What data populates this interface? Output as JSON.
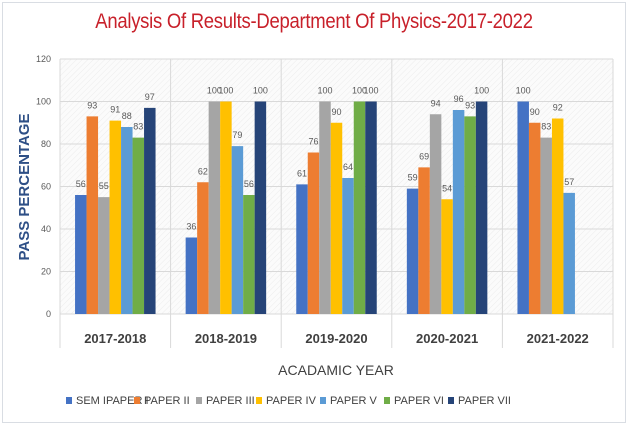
{
  "chart_data": {
    "type": "bar",
    "title": "Analysis Of Results-Department Of Physics-2017-2022",
    "xlabel": "ACADAMIC YEAR",
    "ylabel": "PASS PERCENTAGE",
    "ylim": [
      0,
      120
    ],
    "yticks": [
      0,
      20,
      40,
      60,
      80,
      100,
      120
    ],
    "grid": true,
    "legend_position": "bottom",
    "categories": [
      "2017-2018",
      "2018-2019",
      "2019-2020",
      "2020-2021",
      "2021-2022"
    ],
    "series": [
      {
        "name": "SEM IPAPER I",
        "color": "#4472c4",
        "values": [
          56,
          36,
          61,
          59,
          100
        ]
      },
      {
        "name": "PAPER II",
        "color": "#ed7d31",
        "values": [
          93,
          62,
          76,
          69,
          90
        ]
      },
      {
        "name": "PAPER III",
        "color": "#a5a5a5",
        "values": [
          55,
          100,
          100,
          94,
          83
        ]
      },
      {
        "name": "PAPER IV",
        "color": "#ffc000",
        "values": [
          91,
          100,
          90,
          54,
          92
        ]
      },
      {
        "name": "PAPER V",
        "color": "#5b9bd5",
        "values": [
          88,
          79,
          64,
          96,
          57
        ]
      },
      {
        "name": "PAPER VI",
        "color": "#70ad47",
        "values": [
          83,
          56,
          100,
          93,
          null
        ]
      },
      {
        "name": "PAPER VII",
        "color": "#264478",
        "values": [
          97,
          100,
          100,
          100,
          null
        ]
      }
    ]
  }
}
